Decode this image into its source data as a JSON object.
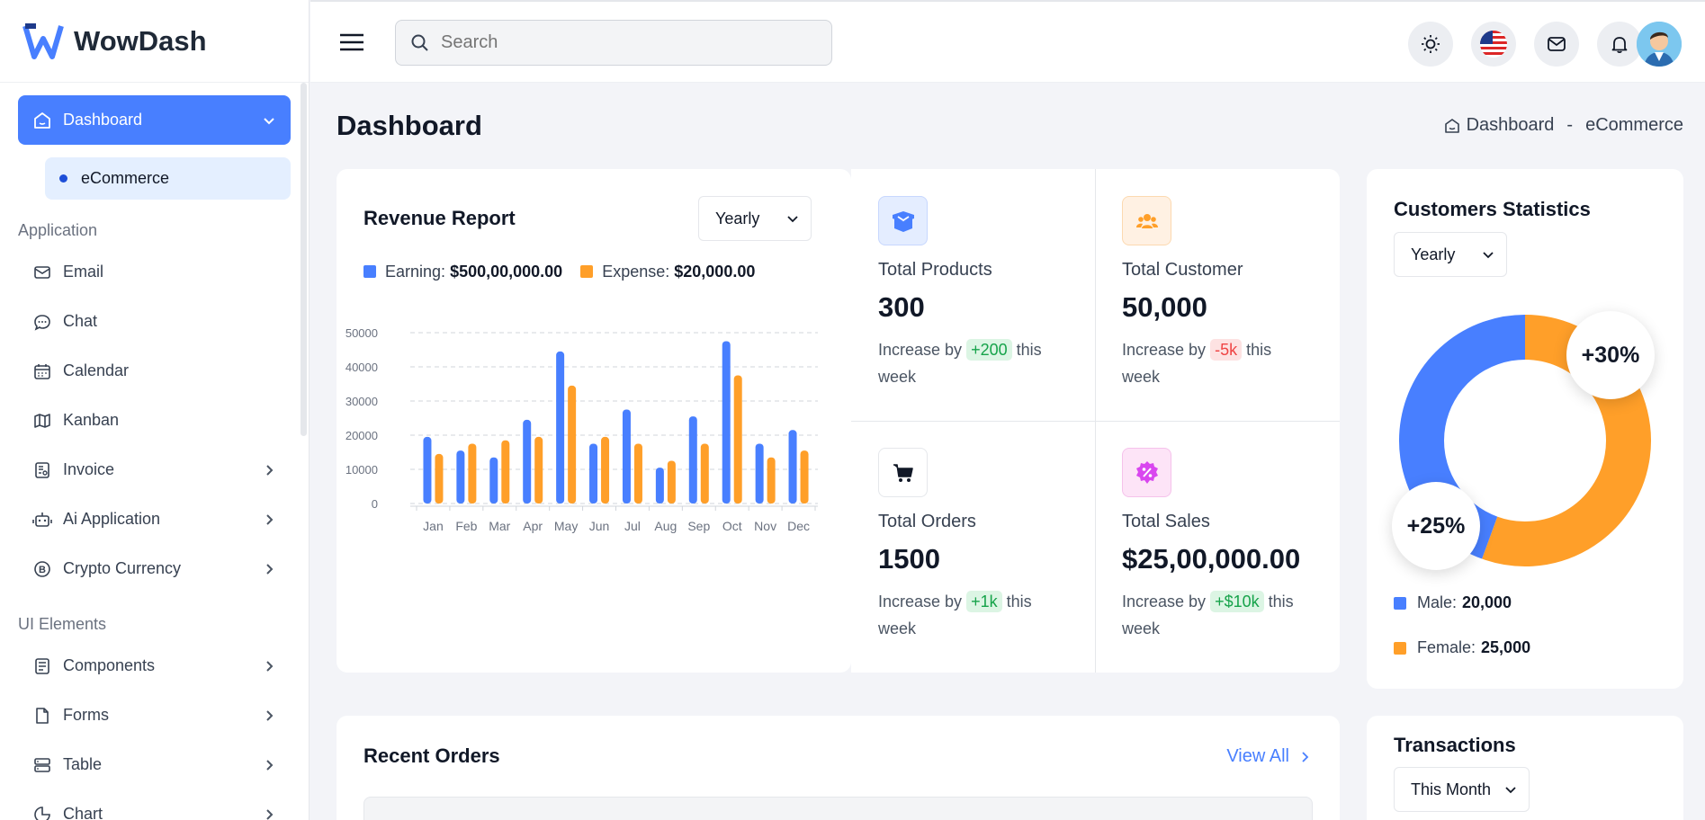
{
  "app": {
    "name": "WowDash"
  },
  "sidebar": {
    "active": {
      "label": "Dashboard"
    },
    "sub": {
      "label": "eCommerce"
    },
    "sections": {
      "application": "Application",
      "ui": "UI Elements"
    },
    "items": [
      {
        "label": "Email",
        "icon": "mail-icon"
      },
      {
        "label": "Chat",
        "icon": "chat-icon"
      },
      {
        "label": "Calendar",
        "icon": "calendar-icon"
      },
      {
        "label": "Kanban",
        "icon": "kanban-icon"
      },
      {
        "label": "Invoice",
        "icon": "invoice-icon"
      },
      {
        "label": "Ai Application",
        "icon": "robot-icon"
      },
      {
        "label": "Crypto Currency",
        "icon": "bitcoin-icon"
      },
      {
        "label": "Components",
        "icon": "components-icon"
      },
      {
        "label": "Forms",
        "icon": "forms-icon"
      },
      {
        "label": "Table",
        "icon": "table-icon"
      },
      {
        "label": "Chart",
        "icon": "chart-icon"
      }
    ]
  },
  "topbar": {
    "search_placeholder": "Search"
  },
  "page": {
    "title": "Dashboard",
    "breadcrumb_home": "Dashboard",
    "breadcrumb_sep": "-",
    "breadcrumb_current": "eCommerce"
  },
  "revenue": {
    "title": "Revenue Report",
    "period": "Yearly",
    "earning_label": "Earning:",
    "earning_value": "$500,00,000.00",
    "expense_label": "Expense:",
    "expense_value": "$20,000.00"
  },
  "chart_data": {
    "type": "bar",
    "categories": [
      "Jan",
      "Feb",
      "Mar",
      "Apr",
      "May",
      "Jun",
      "Jul",
      "Aug",
      "Sep",
      "Oct",
      "Nov",
      "Dec"
    ],
    "series": [
      {
        "name": "Earning",
        "color": "#487fff",
        "values": [
          19500,
          15500,
          13500,
          24500,
          44500,
          17500,
          27500,
          10500,
          25500,
          47500,
          17500,
          21500
        ]
      },
      {
        "name": "Expense",
        "color": "#ff9f29",
        "values": [
          14500,
          17500,
          18500,
          19500,
          34500,
          19500,
          17500,
          12500,
          17500,
          37500,
          13500,
          15500
        ]
      }
    ],
    "yticks": [
      0,
      10000,
      20000,
      30000,
      40000,
      50000
    ],
    "ylim": [
      0,
      50000
    ],
    "grid": true
  },
  "stats": [
    {
      "label": "Total Products",
      "value": "300",
      "prefix": "Increase by",
      "tag": "+200",
      "suffix": "this week",
      "tag_bg": "#dcf5e4",
      "tag_color": "#16a34a",
      "icon": "box-icon"
    },
    {
      "label": "Total Customer",
      "value": "50,000",
      "prefix": "Increase by",
      "tag": "-5k",
      "suffix": "this week",
      "tag_bg": "#fde2e2",
      "tag_color": "#ef4444",
      "icon": "users-icon"
    },
    {
      "label": "Total Orders",
      "value": "1500",
      "prefix": "Increase by",
      "tag": "+1k",
      "suffix": "this week",
      "tag_bg": "#dcf5e4",
      "tag_color": "#16a34a",
      "icon": "cart-icon"
    },
    {
      "label": "Total Sales",
      "value": "$25,00,000.00",
      "prefix": "Increase by",
      "tag": "+$10k",
      "suffix": "this week",
      "tag_bg": "#dcf5e4",
      "tag_color": "#16a34a",
      "icon": "percent-badge-icon"
    }
  ],
  "customers": {
    "title": "Customers Statistics",
    "period": "Yearly",
    "female_pct_label": "+30%",
    "male_pct_label": "+25%",
    "male_label": "Male:",
    "male_value": "20,000",
    "female_label": "Female:",
    "female_value": "25,000",
    "donut": [
      {
        "name": "Male",
        "value": 20000,
        "color": "#487fff"
      },
      {
        "name": "Female",
        "value": 25000,
        "color": "#ff9f29"
      }
    ]
  },
  "orders": {
    "title": "Recent Orders",
    "view_all": "View All"
  },
  "transactions": {
    "title": "Transactions",
    "period": "This Month"
  }
}
